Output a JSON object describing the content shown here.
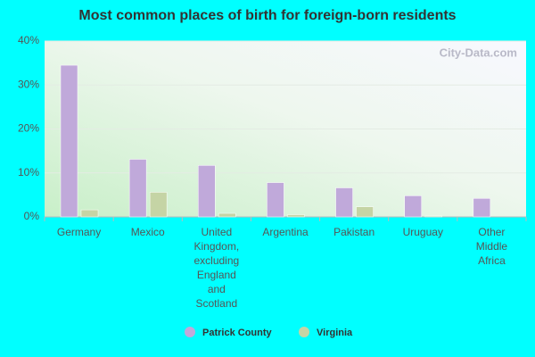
{
  "chart_data": {
    "type": "bar",
    "title": "Most common places of birth for foreign-born residents",
    "watermark": "City-Data.com",
    "categories": [
      "Germany",
      "Mexico",
      "United Kingdom, excluding England and Scotland",
      "Argentina",
      "Pakistan",
      "Uruguay",
      "Other Middle Africa"
    ],
    "series": [
      {
        "name": "Patrick County",
        "color": "#c0a9da",
        "values": [
          34.5,
          13.1,
          11.7,
          7.8,
          6.6,
          4.8,
          4.2
        ]
      },
      {
        "name": "Virginia",
        "color": "#c5d4a5",
        "values": [
          1.6,
          5.6,
          0.8,
          0.5,
          2.3,
          0.2,
          0
        ]
      }
    ],
    "ylim": [
      0,
      40
    ],
    "yticks": [
      {
        "value": 0,
        "label": "0%"
      },
      {
        "value": 10,
        "label": "10%"
      },
      {
        "value": 20,
        "label": "20%"
      },
      {
        "value": 30,
        "label": "30%"
      },
      {
        "value": 40,
        "label": "40%"
      }
    ],
    "grid": true
  }
}
